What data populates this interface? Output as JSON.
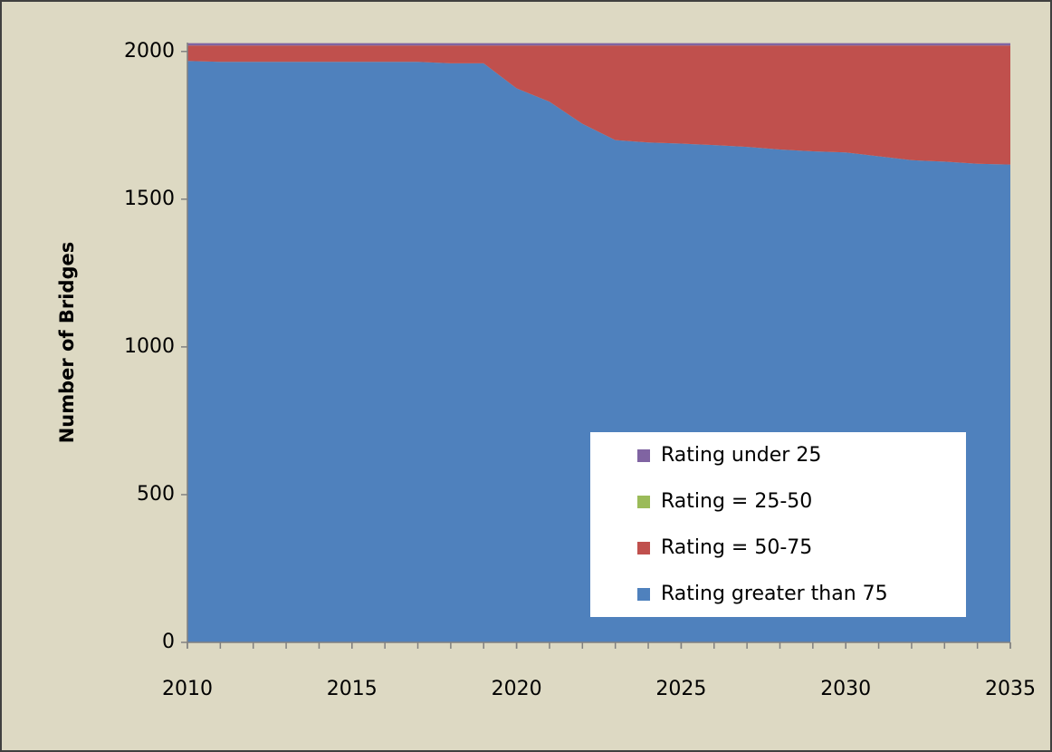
{
  "chart_data": {
    "type": "area",
    "stacked": true,
    "ylabel": "Number of Bridges",
    "x": [
      2010,
      2011,
      2012,
      2013,
      2014,
      2015,
      2016,
      2017,
      2018,
      2019,
      2020,
      2021,
      2022,
      2023,
      2024,
      2025,
      2026,
      2027,
      2028,
      2029,
      2030,
      2031,
      2032,
      2033,
      2034,
      2035
    ],
    "xlim": [
      2010,
      2035
    ],
    "xticks": [
      2010,
      2015,
      2020,
      2025,
      2030,
      2035
    ],
    "ylim": [
      0,
      2030
    ],
    "yticks": [
      0,
      500,
      1000,
      1500,
      2000
    ],
    "legend": "lower right",
    "series": [
      {
        "name": "Rating greater than 75",
        "color": "#4f81bd",
        "values": [
          1968,
          1965,
          1965,
          1965,
          1965,
          1965,
          1965,
          1965,
          1960,
          1960,
          1875,
          1830,
          1755,
          1700,
          1692,
          1688,
          1683,
          1677,
          1668,
          1662,
          1658,
          1645,
          1632,
          1627,
          1620,
          1617
        ]
      },
      {
        "name": "Rating = 50-75",
        "color": "#c0504d",
        "values": [
          52,
          55,
          55,
          55,
          55,
          55,
          55,
          55,
          60,
          60,
          145,
          190,
          265,
          320,
          328,
          332,
          337,
          343,
          352,
          358,
          362,
          375,
          388,
          393,
          400,
          403
        ]
      },
      {
        "name": "Rating = 25-50",
        "color": "#9bbb59",
        "values": [
          0,
          0,
          0,
          0,
          0,
          0,
          0,
          0,
          0,
          0,
          0,
          0,
          0,
          0,
          0,
          0,
          0,
          0,
          0,
          0,
          0,
          0,
          0,
          0,
          0,
          0
        ]
      },
      {
        "name": "Rating under 25",
        "color": "#8064a2",
        "values": [
          8,
          8,
          8,
          8,
          8,
          8,
          8,
          8,
          8,
          8,
          8,
          8,
          8,
          8,
          8,
          8,
          8,
          8,
          8,
          8,
          8,
          8,
          8,
          8,
          8,
          8
        ]
      }
    ]
  }
}
